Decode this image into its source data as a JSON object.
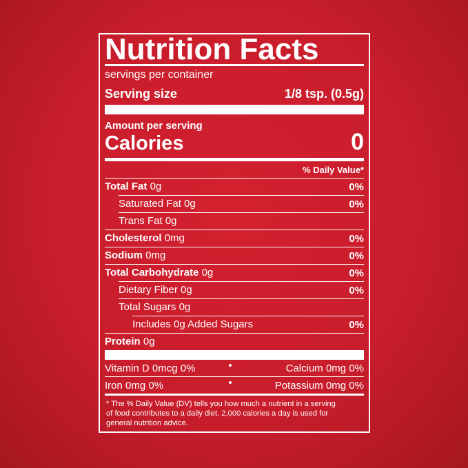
{
  "title": "Nutrition Facts",
  "servings": "servings per container",
  "serving_size": {
    "label": "Serving size",
    "value": "1/8 tsp. (0.5g)"
  },
  "amount_per_serving": "Amount per serving",
  "calories": {
    "label": "Calories",
    "value": "0"
  },
  "daily_value_header": "% Daily Value*",
  "rows": [
    {
      "name": "Total Fat",
      "amount": "0g",
      "dv": "0%",
      "indent": 0
    },
    {
      "name": "Saturated Fat",
      "amount": "0g",
      "dv": "0%",
      "indent": 1
    },
    {
      "name": "Trans Fat",
      "amount": "0g",
      "dv": null,
      "indent": 1
    },
    {
      "name": "Cholesterol",
      "amount": "0mg",
      "dv": "0%",
      "indent": 0
    },
    {
      "name": "Sodium",
      "amount": "0mg",
      "dv": "0%",
      "indent": 0
    },
    {
      "name": "Total Carbohydrate",
      "amount": "0g",
      "dv": "0%",
      "indent": 0
    },
    {
      "name": "Dietary Fiber",
      "amount": "0g",
      "dv": "0%",
      "indent": 1
    },
    {
      "name": "Total Sugars",
      "amount": "0g",
      "dv": null,
      "indent": 1
    },
    {
      "name": "Includes 0g Added Sugars",
      "amount": null,
      "dv": "0%",
      "indent": 2
    },
    {
      "name": "Protein",
      "amount": "0g",
      "dv": null,
      "indent": 0
    }
  ],
  "micronutrients": [
    {
      "left": "Vitamin D 0mcg 0%",
      "right": "Calcium 0mg 0%"
    },
    {
      "left": "Iron 0mg 0%",
      "right": "Potassium 0mg 0%"
    }
  ],
  "footnote": [
    "* The % Daily Value (DV) tells you how much a nutrient in a serving",
    "of food contributes to a daily diet. 2,000 calories a day is used for",
    "general nutrition advice."
  ]
}
